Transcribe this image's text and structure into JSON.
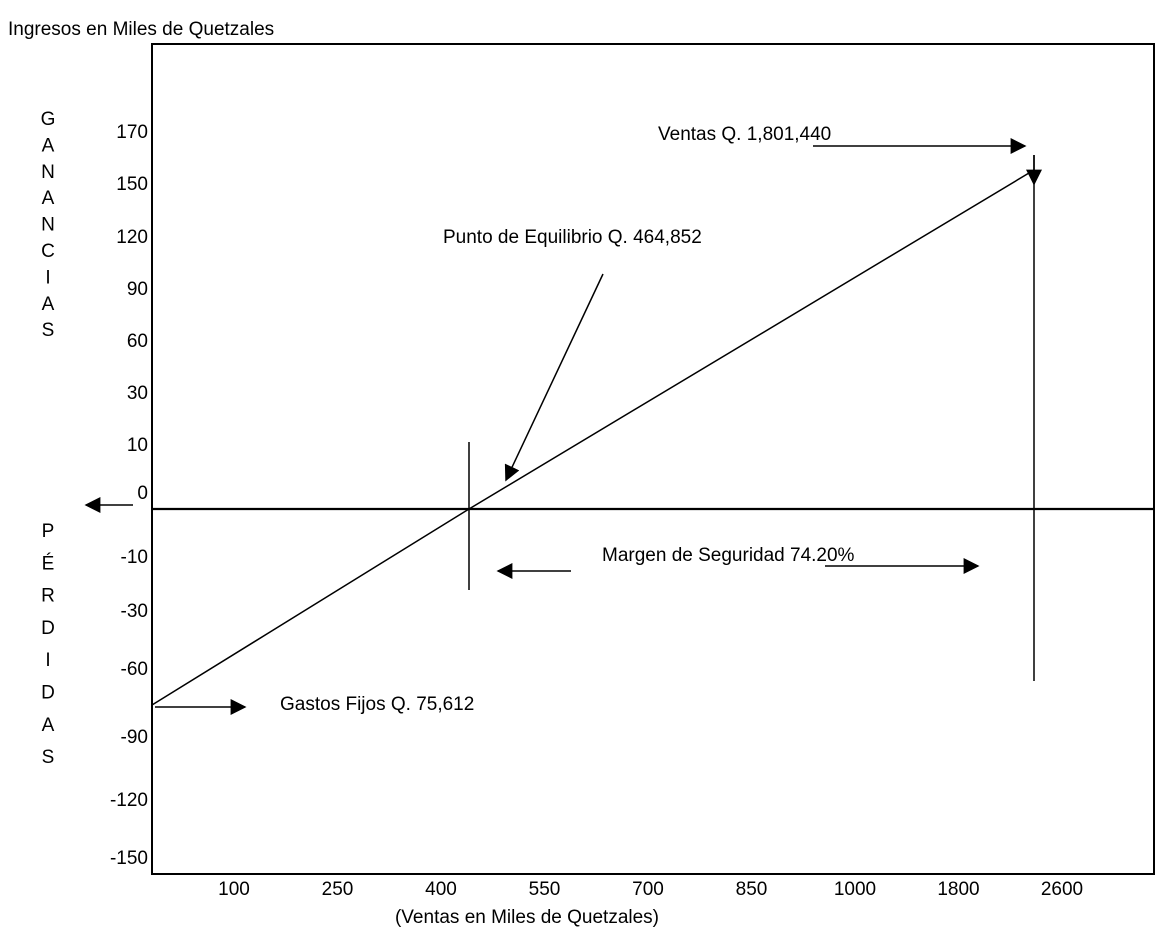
{
  "chart_data": {
    "type": "line",
    "title": "Ingresos en Miles de Quetzales",
    "xlabel": "(Ventas en Miles de Quetzales)",
    "ylabel_top": [
      "G",
      "A",
      "N",
      "A",
      "N",
      "C",
      "I",
      "A",
      "S"
    ],
    "ylabel_bottom": [
      "P",
      "É",
      "R",
      "D",
      "I",
      "D",
      "A",
      "S"
    ],
    "x_ticks": [
      "100",
      "250",
      "400",
      "550",
      "700",
      "850",
      "1000",
      "1800",
      "2600"
    ],
    "y_ticks": [
      "170",
      "150",
      "120",
      "90",
      "60",
      "30",
      "10",
      "0",
      "-10",
      "-30",
      "-60",
      "-90",
      "-120",
      "-150"
    ],
    "series": [
      {
        "points": [
          {
            "x": 0,
            "y": -75.612
          },
          {
            "x": 464.852,
            "y": 0
          },
          {
            "x": 1801.44,
            "y": 150
          }
        ]
      }
    ],
    "annotations": {
      "ventas": "Ventas Q. 1,801,440",
      "equilibrio": "Punto de Equilibrio  Q. 464,852",
      "margen": "Margen de Seguridad 74.20%",
      "gastos": "Gastos Fijos Q. 75,612"
    }
  }
}
